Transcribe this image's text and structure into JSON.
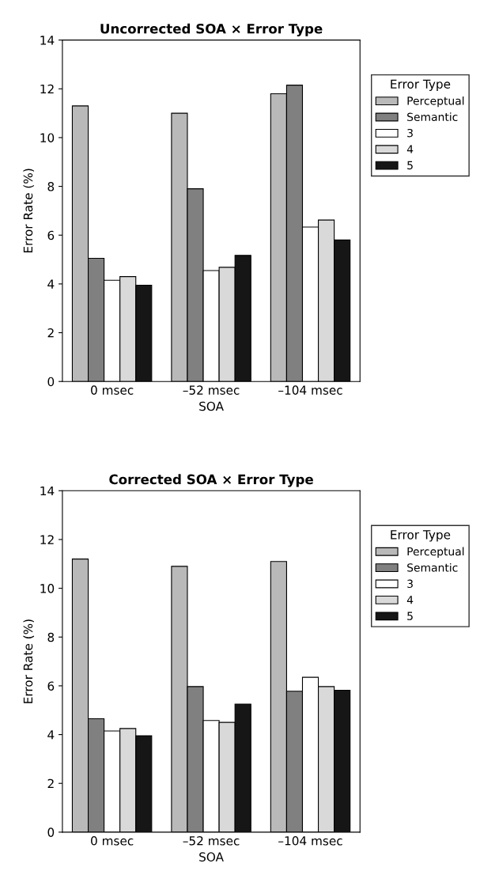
{
  "chart_data": [
    {
      "type": "bar",
      "title": "Uncorrected SOA × Error Type",
      "xlabel": "SOA",
      "ylabel": "Error Rate (%)",
      "legend_title": "Error Type",
      "categories": [
        "0 msec",
        "–52 msec",
        "–104 msec"
      ],
      "ylim": [
        0,
        14
      ],
      "yticks": [
        0,
        2,
        4,
        6,
        8,
        10,
        12,
        14
      ],
      "grid": false,
      "legend": "right",
      "series": [
        {
          "name": "Perceptual",
          "color": "#b9b9b9",
          "values": [
            11.3,
            11.0,
            11.8
          ]
        },
        {
          "name": "Semantic",
          "color": "#808080",
          "values": [
            5.05,
            7.9,
            12.15
          ]
        },
        {
          "name": "3",
          "color": "#ffffff",
          "values": [
            4.15,
            4.55,
            6.33
          ]
        },
        {
          "name": "4",
          "color": "#d9d9d9",
          "values": [
            4.3,
            4.68,
            6.62
          ]
        },
        {
          "name": "5",
          "color": "#161616",
          "values": [
            3.95,
            5.17,
            5.8
          ]
        }
      ]
    },
    {
      "type": "bar",
      "title": "Corrected SOA × Error Type",
      "xlabel": "SOA",
      "ylabel": "Error Rate (%)",
      "legend_title": "Error Type",
      "categories": [
        "0 msec",
        "–52 msec",
        "–104 msec"
      ],
      "ylim": [
        0,
        14
      ],
      "yticks": [
        0,
        2,
        4,
        6,
        8,
        10,
        12,
        14
      ],
      "grid": false,
      "legend": "right",
      "series": [
        {
          "name": "Perceptual",
          "color": "#b9b9b9",
          "values": [
            11.2,
            10.9,
            11.1
          ]
        },
        {
          "name": "Semantic",
          "color": "#808080",
          "values": [
            4.65,
            5.97,
            5.78
          ]
        },
        {
          "name": "3",
          "color": "#ffffff",
          "values": [
            4.15,
            4.58,
            6.35
          ]
        },
        {
          "name": "4",
          "color": "#d9d9d9",
          "values": [
            4.25,
            4.5,
            5.97
          ]
        },
        {
          "name": "5",
          "color": "#161616",
          "values": [
            3.95,
            5.25,
            5.82
          ]
        }
      ]
    }
  ]
}
